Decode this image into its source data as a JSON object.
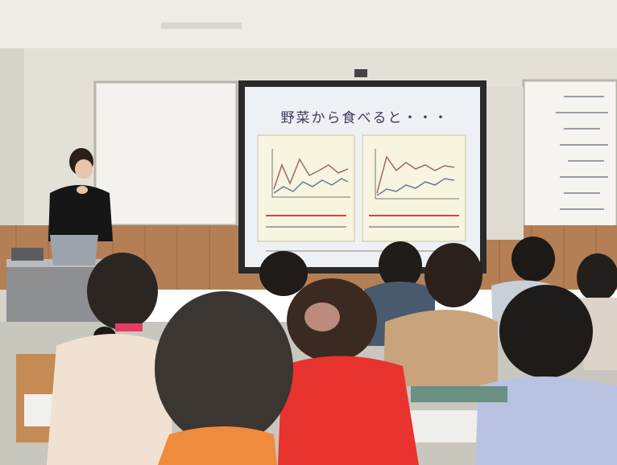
{
  "slide": {
    "title": "野菜から食べると・・・"
  },
  "colors": {
    "wall": "#e6e3dc",
    "ceiling": "#efece6",
    "wood_panel": "#b57f55",
    "screen": "#eef1f4",
    "red_shirt": "#e8332e",
    "orange_shirt": "#f08a3c"
  }
}
